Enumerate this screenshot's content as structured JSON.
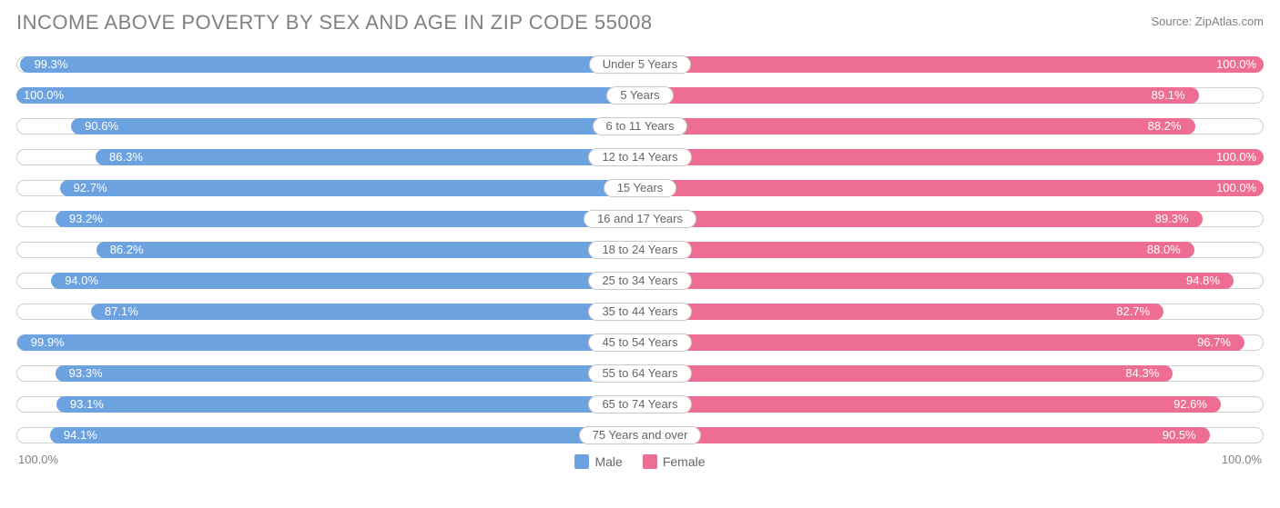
{
  "title": "INCOME ABOVE POVERTY BY SEX AND AGE IN ZIP CODE 55008",
  "source": "Source: ZipAtlas.com",
  "chart": {
    "type": "butterfly-bar",
    "left_series": {
      "name": "Male",
      "color": "#6ca2e0",
      "text_color": "#ffffff"
    },
    "right_series": {
      "name": "Female",
      "color": "#ed6e92",
      "text_color": "#ffffff"
    },
    "track_border": "#d0d0d0",
    "track_bg": "#ffffff",
    "xlim": [
      0,
      100
    ],
    "axis_left_label": "100.0%",
    "axis_right_label": "100.0%",
    "rows": [
      {
        "label": "Under 5 Years",
        "male": 99.3,
        "female": 100.0
      },
      {
        "label": "5 Years",
        "male": 100.0,
        "female": 89.1
      },
      {
        "label": "6 to 11 Years",
        "male": 90.6,
        "female": 88.2
      },
      {
        "label": "12 to 14 Years",
        "male": 86.3,
        "female": 100.0
      },
      {
        "label": "15 Years",
        "male": 92.7,
        "female": 100.0
      },
      {
        "label": "16 and 17 Years",
        "male": 93.2,
        "female": 89.3
      },
      {
        "label": "18 to 24 Years",
        "male": 86.2,
        "female": 88.0
      },
      {
        "label": "25 to 34 Years",
        "male": 94.0,
        "female": 94.8
      },
      {
        "label": "35 to 44 Years",
        "male": 87.1,
        "female": 82.7
      },
      {
        "label": "45 to 54 Years",
        "male": 99.9,
        "female": 96.7
      },
      {
        "label": "55 to 64 Years",
        "male": 93.3,
        "female": 84.3
      },
      {
        "label": "65 to 74 Years",
        "male": 93.1,
        "female": 92.6
      },
      {
        "label": "75 Years and over",
        "male": 94.1,
        "female": 90.5
      }
    ]
  },
  "legend": {
    "male": "Male",
    "female": "Female"
  }
}
